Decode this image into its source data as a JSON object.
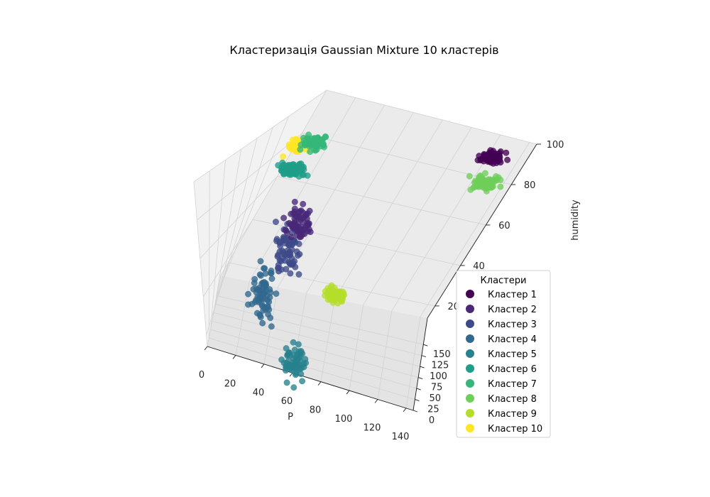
{
  "chart_data": {
    "type": "scatter",
    "projection": "3d",
    "title": "Кластеризація Gaussian Mixture 10 кластерів",
    "xlabel": "P",
    "ylabel": "",
    "zlabel": "humidity",
    "x_ticks": [
      "0",
      "20",
      "40",
      "60",
      "80",
      "100",
      "120",
      "140"
    ],
    "y_ticks": [
      "0",
      "25",
      "50",
      "75",
      "100",
      "125",
      "150"
    ],
    "z_ticks": [
      "20",
      "40",
      "60",
      "80",
      "100"
    ],
    "xlim": [
      0,
      145
    ],
    "ylim": [
      0,
      210
    ],
    "zlim": [
      14,
      100
    ],
    "grid": true,
    "legend": {
      "title": "Кластери",
      "location": "lower-right"
    },
    "series": [
      {
        "name": "Кластер 1",
        "color": "#440154",
        "center": [
          125,
          200,
          91
        ],
        "spread": [
          8,
          6,
          3
        ]
      },
      {
        "name": "Кластер 2",
        "color": "#482878",
        "center": [
          60,
          17,
          81
        ],
        "spread": [
          8,
          6,
          8
        ]
      },
      {
        "name": "Кластер 3",
        "color": "#3e4989",
        "center": [
          48,
          40,
          63
        ],
        "spread": [
          10,
          10,
          12
        ]
      },
      {
        "name": "Кластер 4",
        "color": "#31688e",
        "center": [
          37,
          22,
          44
        ],
        "spread": [
          8,
          8,
          12
        ]
      },
      {
        "name": "Кластер 5",
        "color": "#26828e",
        "center": [
          60,
          20,
          15
        ],
        "spread": [
          8,
          8,
          8
        ]
      },
      {
        "name": "Кластер 6",
        "color": "#1f9e89",
        "center": [
          20,
          130,
          81
        ],
        "spread": [
          8,
          6,
          3
        ]
      },
      {
        "name": "Кластер 7",
        "color": "#35b779",
        "center": [
          26,
          135,
          94
        ],
        "spread": [
          8,
          6,
          3
        ]
      },
      {
        "name": "Кластер 8",
        "color": "#6ece58",
        "center": [
          130,
          200,
          80
        ],
        "spread": [
          8,
          6,
          3
        ]
      },
      {
        "name": "Кластер 9",
        "color": "#b5de2b",
        "center": [
          85,
          20,
          50
        ],
        "spread": [
          6,
          5,
          3
        ]
      },
      {
        "name": "Кластер 10",
        "color": "#fde725",
        "center": [
          15,
          140,
          90
        ],
        "spread": [
          7,
          6,
          3
        ]
      }
    ]
  }
}
